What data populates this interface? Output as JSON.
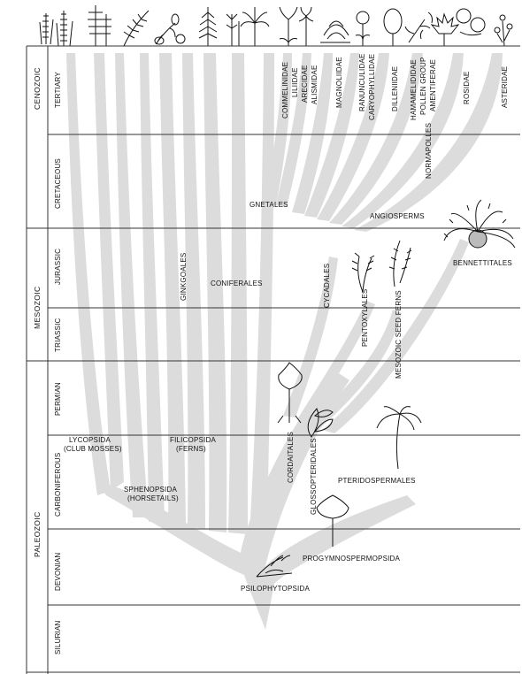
{
  "eras": [
    {
      "id": "cenozoic",
      "label": "CENOZOIC"
    },
    {
      "id": "mesozoic",
      "label": "MESOZOIC"
    },
    {
      "id": "paleozoic",
      "label": "PALEOZOIC"
    }
  ],
  "periods": [
    {
      "id": "tertiary",
      "label": "TERTIARY"
    },
    {
      "id": "cretaceous",
      "label": "CRETACEOUS"
    },
    {
      "id": "jurassic",
      "label": "JURASSIC"
    },
    {
      "id": "triassic",
      "label": "TRIASSIC"
    },
    {
      "id": "permian",
      "label": "PERMIAN"
    },
    {
      "id": "carboniferous",
      "label": "CARBONIFEROUS"
    },
    {
      "id": "devonian",
      "label": "DEVONIAN"
    },
    {
      "id": "silurian",
      "label": "SILURIAN"
    }
  ],
  "tertiary_groups": {
    "commelinidae": "COMMELINIDAE",
    "liliidae": "LILIIDAE",
    "arecidae": "ARECIDAE",
    "alismidae": "ALISMIDAE",
    "magnoliidae": "MAGNOLIIDAE",
    "ranunculidae": "RANUNCULIDAE",
    "caryophyllidae": "CARYOPHYLLIDAE",
    "dilleniidae": "DILLENIIDAE",
    "hamamelididae": "HAMAMELIDIDAE",
    "pollen_group": "POLLEN GROUP",
    "amentiferae": "AMENTIFERAE",
    "normapolles": "NORMAPOLLES",
    "rosidae": "ROSIDAE",
    "asteridae": "ASTERIDAE"
  },
  "lineages": {
    "gnetales": "GNETALES",
    "angiosperms": "ANGIOSPERMS",
    "bennettitales": "BENNETTITALES",
    "ginkgoales": "GINKGOALES",
    "coniferales": "CONIFERALES",
    "cycadales": "CYCADALES",
    "pentoxylales": "PENTOXYLALES",
    "mesozoic_seed_ferns": "MESOZOIC SEED FERNS",
    "lycopsida": "LYCOPSIDA",
    "club_mosses": "(CLUB MOSSES)",
    "filicopsida": "FILICOPSIDA",
    "ferns": "(FERNS)",
    "sphenopsida": "SPHENOPSIDA",
    "horsetails": "(HORSETAILS)",
    "cordaitales": "CORDAITALES",
    "glossopteridales": "GLOSSOPTERIDALES",
    "pteridospermales": "PTERIDOSPERMALES",
    "progymnospermopsida": "PROGYMNOSPERMOPSIDA",
    "psilophytopsida": "PSILOPHYTOPSIDA"
  },
  "colors": {
    "ink": "#111111",
    "branch": "#dcdcdc",
    "background": "#ffffff"
  }
}
